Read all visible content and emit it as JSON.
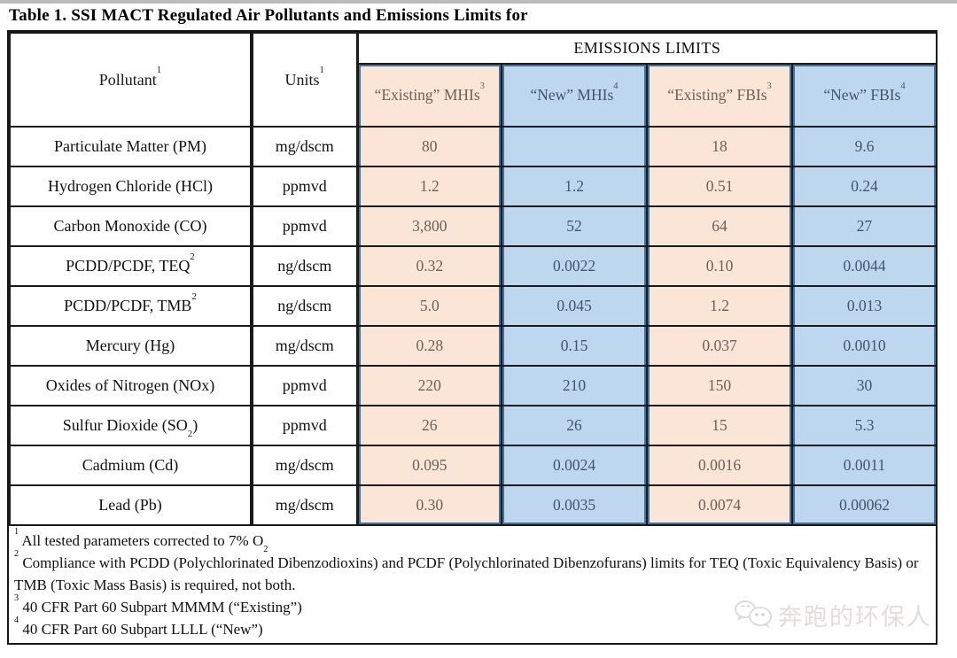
{
  "page": {
    "title": "Table 1. SSI MACT Regulated Air Pollutants and Emissions Limits for"
  },
  "colors": {
    "existing_fill": "#FBE5D6",
    "new_fill": "#BDD7EE",
    "limit_border_blue": "#41719C",
    "grid_black": "#1A1A1A"
  },
  "table": {
    "header": {
      "pollutant": "Pollutant¹",
      "units": "Units¹",
      "emissions_limits": "EMISSIONS LIMITS",
      "limit_columns": [
        {
          "label": "“Existing” MHIs³",
          "type": "existing"
        },
        {
          "label": "“New” MHIs⁴",
          "type": "new"
        },
        {
          "label": "“Existing” FBIs³",
          "type": "existing"
        },
        {
          "label": "“New” FBIs⁴",
          "type": "new"
        }
      ]
    },
    "rows": [
      {
        "pollutant": "Particulate Matter (PM)",
        "units": "mg/dscm",
        "values": [
          "80",
          "",
          "18",
          "9.6"
        ]
      },
      {
        "pollutant": "Hydrogen Chloride (HCl)",
        "units": "ppmvd",
        "values": [
          "1.2",
          "1.2",
          "0.51",
          "0.24"
        ]
      },
      {
        "pollutant": "Carbon Monoxide (CO)",
        "units": "ppmvd",
        "values": [
          "3,800",
          "52",
          "64",
          "27"
        ]
      },
      {
        "pollutant": "PCDD/PCDF, TEQ²",
        "units": "ng/dscm",
        "values": [
          "0.32",
          "0.0022",
          "0.10",
          "0.0044"
        ]
      },
      {
        "pollutant": "PCDD/PCDF, TMB²",
        "units": "ng/dscm",
        "values": [
          "5.0",
          "0.045",
          "1.2",
          "0.013"
        ]
      },
      {
        "pollutant": "Mercury (Hg)",
        "units": "mg/dscm",
        "values": [
          "0.28",
          "0.15",
          "0.037",
          "0.0010"
        ]
      },
      {
        "pollutant": "Oxides of Nitrogen (NOx)",
        "units": "ppmvd",
        "values": [
          "220",
          "210",
          "150",
          "30"
        ]
      },
      {
        "pollutant": "Sulfur Dioxide (SO₂)",
        "units": "ppmvd",
        "values": [
          "26",
          "26",
          "15",
          "5.3"
        ]
      },
      {
        "pollutant": "Cadmium (Cd)",
        "units": "mg/dscm",
        "values": [
          "0.095",
          "0.0024",
          "0.0016",
          "0.0011"
        ]
      },
      {
        "pollutant": "Lead (Pb)",
        "units": "mg/dscm",
        "values": [
          "0.30",
          "0.0035",
          "0.0074",
          "0.00062"
        ]
      }
    ],
    "footnotes": [
      "¹ All tested parameters corrected to 7% O₂",
      "² Compliance with PCDD (Polychlorinated Dibenzodioxins) and PCDF (Polychlorinated Dibenzofurans) limits for TEQ (Toxic Equivalency Basis) or TMB (Toxic Mass Basis) is required, not both.",
      "³ 40 CFR Part 60 Subpart MMMM (“Existing”)",
      "⁴ 40 CFR Part 60 Subpart LLLL (“New”)"
    ]
  },
  "watermark": {
    "text": "奔跑的环保人",
    "icon": "chat-bubbles"
  }
}
